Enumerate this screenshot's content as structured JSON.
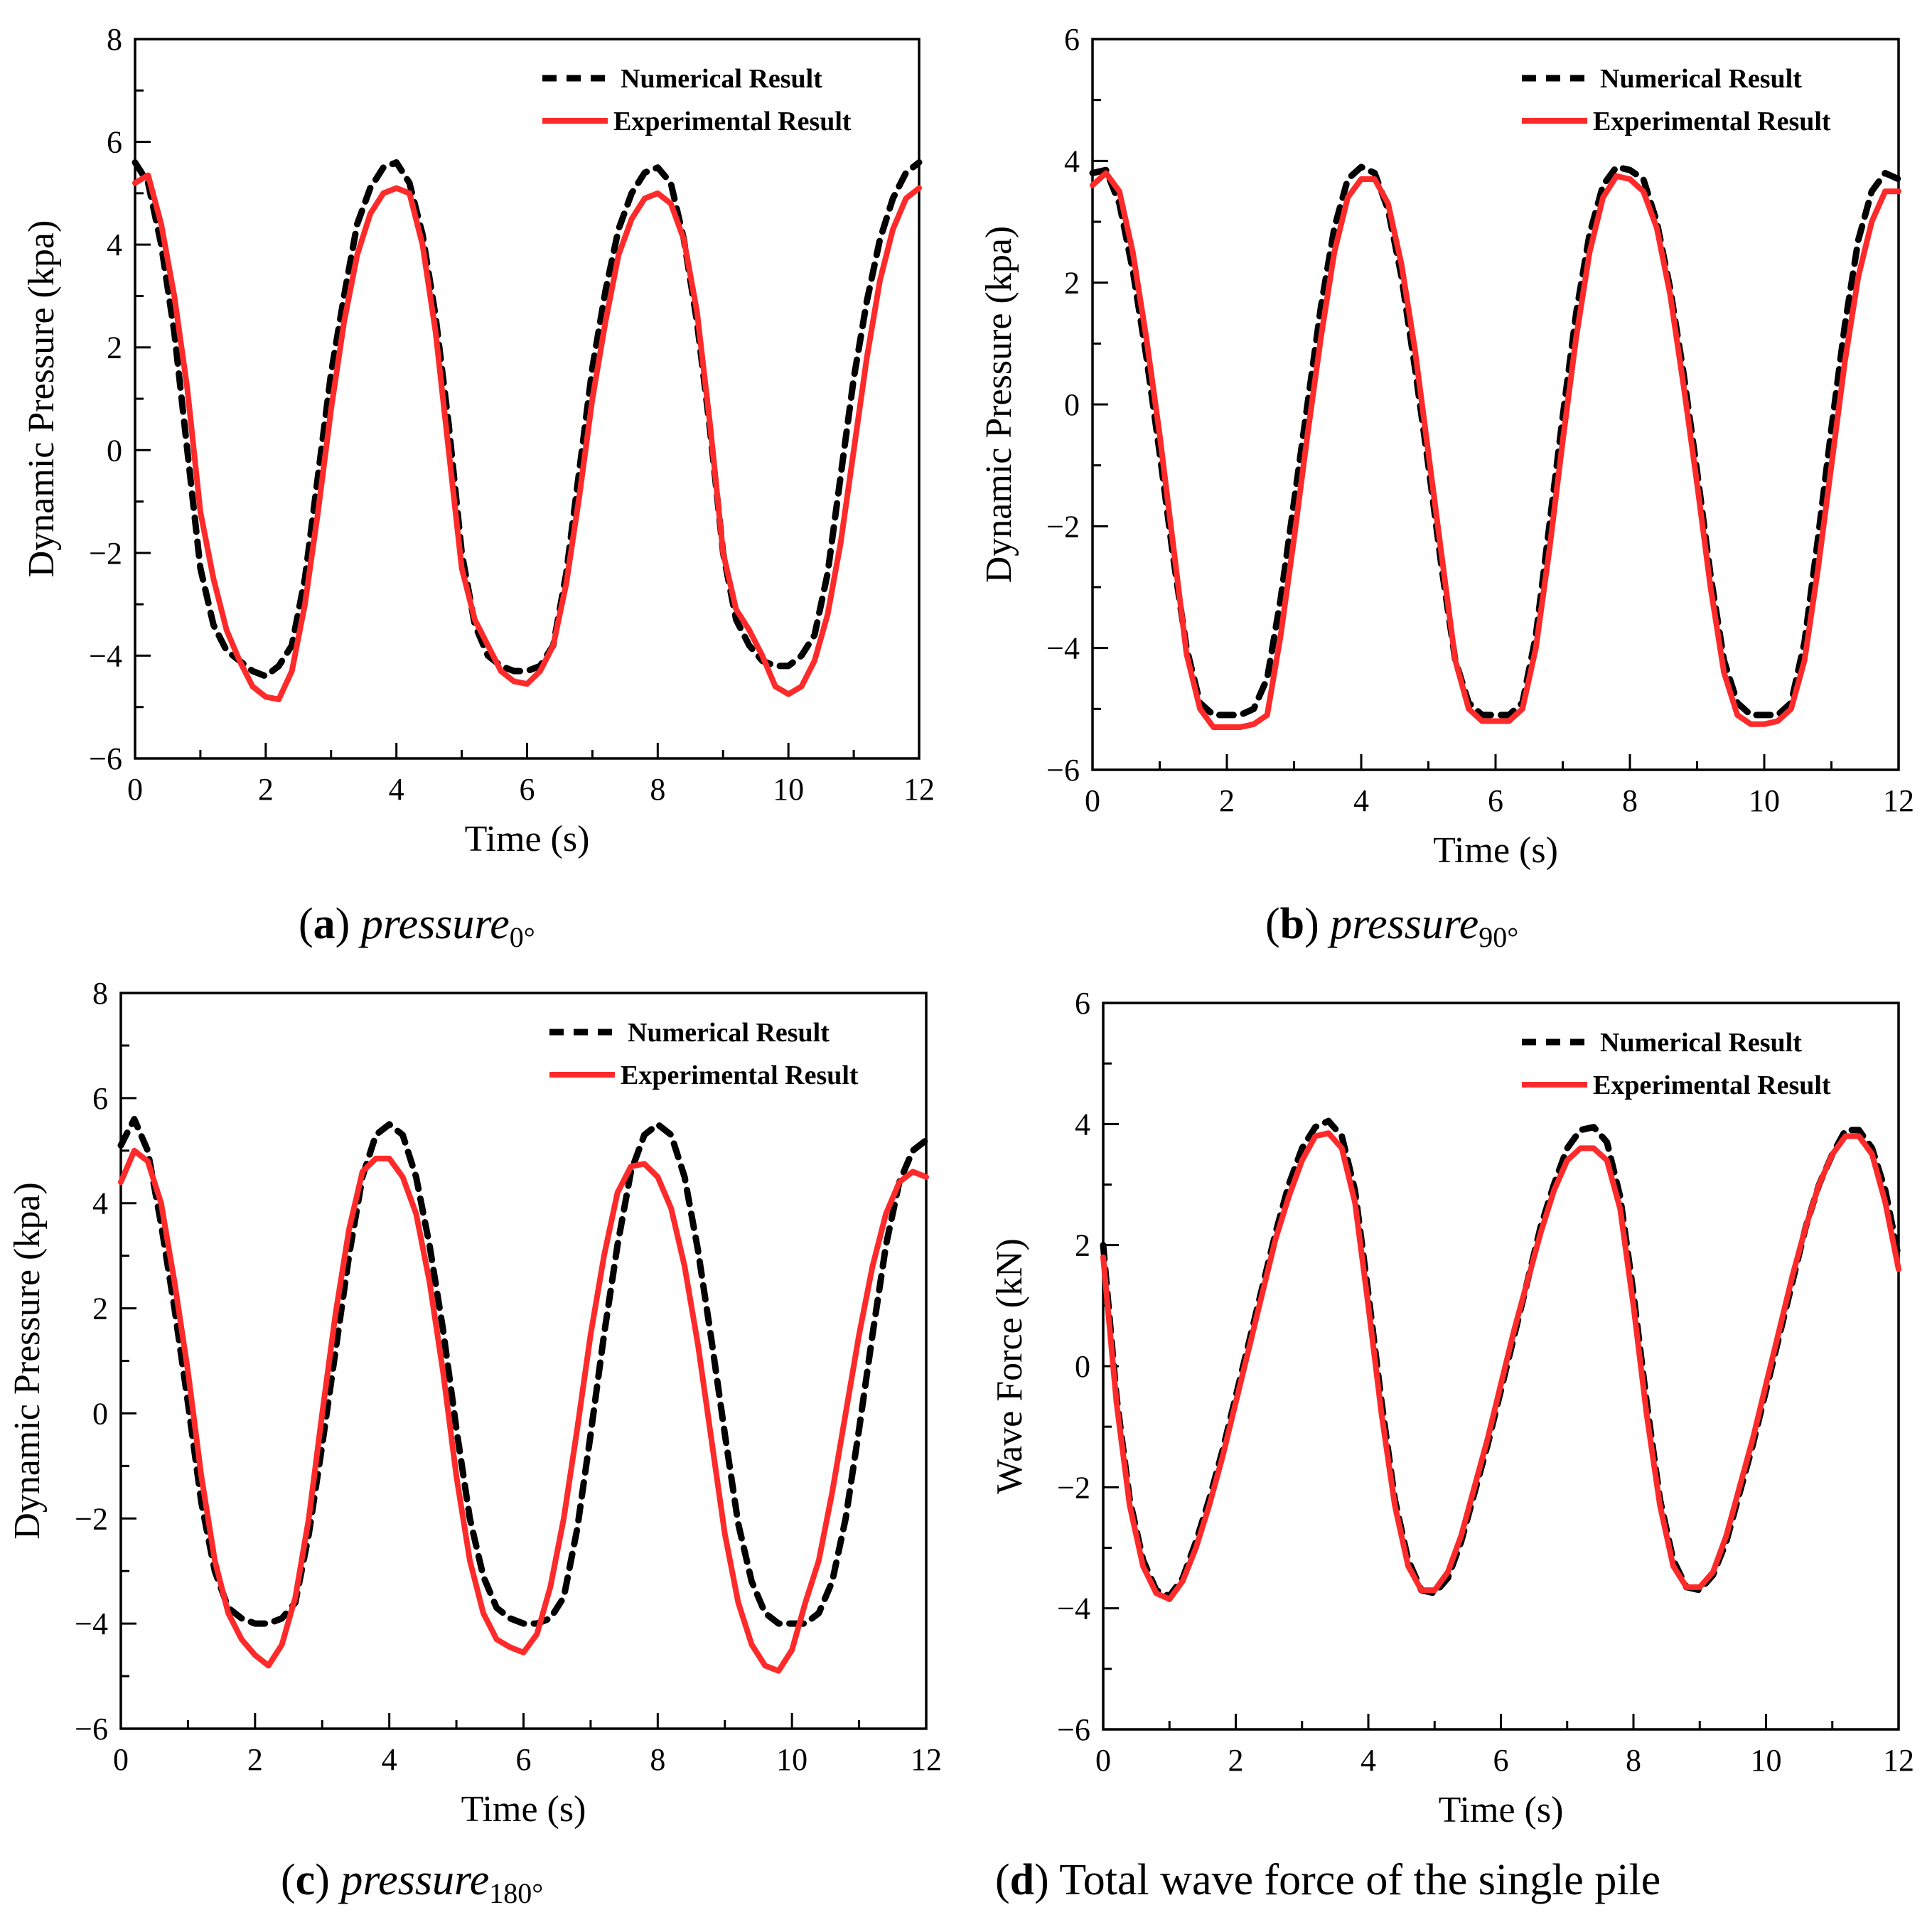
{
  "chart_data": [
    {
      "type": "line",
      "panel": "a",
      "xlabel": "Time (s)",
      "ylabel": "Dynamic Pressure (kpa)",
      "xlim": [
        0,
        12
      ],
      "ylim": [
        -6,
        8
      ],
      "xticks": [
        0,
        2,
        4,
        6,
        8,
        10,
        12
      ],
      "yticks": [
        -6,
        -4,
        -2,
        0,
        2,
        4,
        6,
        8
      ],
      "legend": {
        "position": "top-right",
        "numerical": "Numerical Result",
        "experimental": "Experimental Result"
      },
      "caption": {
        "letter": "a",
        "variable": "pressure",
        "subscript": "0°",
        "text": ""
      },
      "x": [
        0,
        0.2,
        0.4,
        0.6,
        0.8,
        1.0,
        1.2,
        1.4,
        1.6,
        1.8,
        2.0,
        2.2,
        2.4,
        2.6,
        2.8,
        3.0,
        3.2,
        3.4,
        3.6,
        3.8,
        4.0,
        4.2,
        4.4,
        4.6,
        4.8,
        5.0,
        5.2,
        5.4,
        5.6,
        5.8,
        6.0,
        6.2,
        6.4,
        6.6,
        6.8,
        7.0,
        7.2,
        7.4,
        7.6,
        7.8,
        8.0,
        8.2,
        8.4,
        8.6,
        8.8,
        9.0,
        9.2,
        9.4,
        9.6,
        9.8,
        10.0,
        10.2,
        10.4,
        10.6,
        10.8,
        11.0,
        11.2,
        11.4,
        11.6,
        11.8,
        12.0
      ],
      "series": [
        {
          "name": "Numerical Result",
          "style": "dashed",
          "color": "#000000",
          "values": [
            5.6,
            5.2,
            4.0,
            2.3,
            0.0,
            -2.3,
            -3.4,
            -3.9,
            -4.1,
            -4.3,
            -4.4,
            -4.2,
            -3.8,
            -2.5,
            -0.5,
            1.5,
            3.0,
            4.4,
            5.1,
            5.5,
            5.6,
            5.2,
            4.2,
            2.6,
            0.5,
            -2.0,
            -3.4,
            -4.0,
            -4.2,
            -4.3,
            -4.3,
            -4.2,
            -3.8,
            -2.4,
            -0.4,
            1.6,
            3.1,
            4.3,
            5.0,
            5.4,
            5.5,
            5.2,
            4.1,
            2.5,
            0.4,
            -2.0,
            -3.3,
            -3.8,
            -4.1,
            -4.2,
            -4.2,
            -4.0,
            -3.6,
            -2.4,
            -0.5,
            1.4,
            2.9,
            4.1,
            4.9,
            5.4,
            5.6
          ]
        },
        {
          "name": "Experimental Result",
          "style": "solid",
          "color": "#ff2a2a",
          "values": [
            5.2,
            5.35,
            4.4,
            3.0,
            1.2,
            -1.2,
            -2.5,
            -3.5,
            -4.1,
            -4.6,
            -4.8,
            -4.85,
            -4.3,
            -3.0,
            -1.2,
            0.8,
            2.5,
            3.8,
            4.6,
            5.0,
            5.1,
            5.0,
            4.0,
            2.3,
            0.0,
            -2.3,
            -3.3,
            -3.8,
            -4.3,
            -4.5,
            -4.55,
            -4.3,
            -3.8,
            -2.6,
            -0.9,
            1.0,
            2.5,
            3.8,
            4.5,
            4.9,
            5.0,
            4.8,
            4.1,
            2.7,
            0.5,
            -2.0,
            -3.1,
            -3.5,
            -4.0,
            -4.6,
            -4.75,
            -4.6,
            -4.1,
            -3.2,
            -1.8,
            0.0,
            1.8,
            3.3,
            4.3,
            4.9,
            5.1
          ]
        }
      ]
    },
    {
      "type": "line",
      "panel": "b",
      "xlabel": "Time (s)",
      "ylabel": "Dynamic Pressure (kpa)",
      "xlim": [
        0,
        12
      ],
      "ylim": [
        -6,
        6
      ],
      "xticks": [
        0,
        2,
        4,
        6,
        8,
        10,
        12
      ],
      "yticks": [
        -6,
        -4,
        -2,
        0,
        2,
        4,
        6
      ],
      "legend": {
        "position": "top-right",
        "numerical": "Numerical Result",
        "experimental": "Experimental Result"
      },
      "caption": {
        "letter": "b",
        "variable": "pressure",
        "subscript": "90°",
        "text": ""
      },
      "x": [
        0,
        0.2,
        0.4,
        0.6,
        0.8,
        1.0,
        1.2,
        1.4,
        1.6,
        1.8,
        2.0,
        2.2,
        2.4,
        2.6,
        2.8,
        3.0,
        3.2,
        3.4,
        3.6,
        3.8,
        4.0,
        4.2,
        4.4,
        4.6,
        4.8,
        5.0,
        5.2,
        5.4,
        5.6,
        5.8,
        6.0,
        6.2,
        6.4,
        6.6,
        6.8,
        7.0,
        7.2,
        7.4,
        7.6,
        7.8,
        8.0,
        8.2,
        8.4,
        8.6,
        8.8,
        9.0,
        9.2,
        9.4,
        9.6,
        9.8,
        10.0,
        10.2,
        10.4,
        10.6,
        10.8,
        11.0,
        11.2,
        11.4,
        11.6,
        11.8,
        12.0
      ],
      "series": [
        {
          "name": "Numerical Result",
          "style": "dashed",
          "color": "#000000",
          "values": [
            3.8,
            3.85,
            3.3,
            2.2,
            0.8,
            -0.8,
            -2.5,
            -4.0,
            -4.9,
            -5.1,
            -5.1,
            -5.1,
            -5.0,
            -4.5,
            -3.2,
            -1.6,
            0.0,
            1.6,
            2.9,
            3.7,
            3.9,
            3.8,
            3.2,
            2.1,
            0.6,
            -1.0,
            -2.7,
            -4.2,
            -4.9,
            -5.1,
            -5.1,
            -5.1,
            -4.9,
            -3.8,
            -2.0,
            -0.2,
            1.5,
            2.8,
            3.6,
            3.9,
            3.85,
            3.7,
            3.0,
            1.9,
            0.5,
            -1.1,
            -2.8,
            -4.2,
            -4.9,
            -5.1,
            -5.1,
            -5.1,
            -4.9,
            -3.9,
            -2.2,
            -0.4,
            1.3,
            2.7,
            3.5,
            3.8,
            3.7
          ]
        },
        {
          "name": "Experimental Result",
          "style": "solid",
          "color": "#ff2a2a",
          "values": [
            3.6,
            3.8,
            3.5,
            2.5,
            1.1,
            -0.5,
            -2.3,
            -4.1,
            -5.0,
            -5.3,
            -5.3,
            -5.3,
            -5.25,
            -5.1,
            -3.8,
            -2.2,
            -0.5,
            1.1,
            2.5,
            3.4,
            3.7,
            3.7,
            3.3,
            2.3,
            0.9,
            -0.8,
            -2.5,
            -4.2,
            -5.0,
            -5.2,
            -5.2,
            -5.2,
            -5.0,
            -4.0,
            -2.4,
            -0.6,
            1.1,
            2.5,
            3.4,
            3.75,
            3.7,
            3.5,
            2.9,
            1.8,
            0.3,
            -1.3,
            -3.0,
            -4.4,
            -5.1,
            -5.25,
            -5.25,
            -5.2,
            -5.0,
            -4.2,
            -2.7,
            -1.0,
            0.7,
            2.1,
            3.0,
            3.5,
            3.5
          ]
        }
      ]
    },
    {
      "type": "line",
      "panel": "c",
      "xlabel": "Time (s)",
      "ylabel": "Dynamic Pressure (kpa)",
      "xlim": [
        0,
        12
      ],
      "ylim": [
        -6,
        8
      ],
      "xticks": [
        0,
        2,
        4,
        6,
        8,
        10,
        12
      ],
      "yticks": [
        -6,
        -4,
        -2,
        0,
        2,
        4,
        6,
        8
      ],
      "legend": {
        "position": "top-right",
        "numerical": "Numerical Result",
        "experimental": "Experimental Result"
      },
      "caption": {
        "letter": "c",
        "variable": "pressure",
        "subscript": "180°",
        "text": ""
      },
      "x": [
        0,
        0.2,
        0.4,
        0.6,
        0.8,
        1.0,
        1.2,
        1.4,
        1.6,
        1.8,
        2.0,
        2.2,
        2.4,
        2.6,
        2.8,
        3.0,
        3.2,
        3.4,
        3.6,
        3.8,
        4.0,
        4.2,
        4.4,
        4.6,
        4.8,
        5.0,
        5.2,
        5.4,
        5.6,
        5.8,
        6.0,
        6.2,
        6.4,
        6.6,
        6.8,
        7.0,
        7.2,
        7.4,
        7.6,
        7.8,
        8.0,
        8.2,
        8.4,
        8.6,
        8.8,
        9.0,
        9.2,
        9.4,
        9.6,
        9.8,
        10.0,
        10.2,
        10.4,
        10.6,
        10.8,
        11.0,
        11.2,
        11.4,
        11.6,
        11.8,
        12.0
      ],
      "series": [
        {
          "name": "Numerical Result",
          "style": "dashed",
          "color": "#000000",
          "values": [
            5.1,
            5.6,
            5.0,
            3.6,
            2.0,
            0.2,
            -1.7,
            -3.0,
            -3.7,
            -3.9,
            -4.0,
            -4.0,
            -3.9,
            -3.6,
            -2.3,
            -0.6,
            1.2,
            3.0,
            4.5,
            5.3,
            5.5,
            5.3,
            4.5,
            3.2,
            1.6,
            -0.3,
            -2.0,
            -3.1,
            -3.7,
            -3.9,
            -4.0,
            -4.0,
            -3.9,
            -3.5,
            -2.2,
            -0.4,
            1.5,
            3.2,
            4.6,
            5.3,
            5.5,
            5.3,
            4.5,
            3.1,
            1.4,
            -0.4,
            -2.1,
            -3.2,
            -3.8,
            -4.0,
            -4.0,
            -4.0,
            -3.8,
            -3.2,
            -2.0,
            -0.3,
            1.5,
            3.2,
            4.4,
            5.0,
            5.2
          ]
        },
        {
          "name": "Experimental Result",
          "style": "solid",
          "color": "#ff2a2a",
          "values": [
            4.4,
            5.0,
            4.8,
            4.0,
            2.5,
            0.8,
            -1.2,
            -2.8,
            -3.8,
            -4.3,
            -4.6,
            -4.8,
            -4.4,
            -3.5,
            -2.0,
            0.0,
            1.9,
            3.5,
            4.6,
            4.85,
            4.85,
            4.5,
            3.8,
            2.5,
            0.8,
            -1.2,
            -2.8,
            -3.8,
            -4.3,
            -4.45,
            -4.55,
            -4.2,
            -3.3,
            -2.0,
            -0.3,
            1.5,
            3.0,
            4.2,
            4.7,
            4.75,
            4.5,
            3.9,
            2.8,
            1.3,
            -0.5,
            -2.3,
            -3.6,
            -4.4,
            -4.8,
            -4.9,
            -4.5,
            -3.6,
            -2.8,
            -1.5,
            0.0,
            1.5,
            2.8,
            3.8,
            4.4,
            4.6,
            4.5
          ]
        }
      ]
    },
    {
      "type": "line",
      "panel": "d",
      "xlabel": "Time (s)",
      "ylabel": "Wave Force (kN)",
      "xlim": [
        0,
        12
      ],
      "ylim": [
        -6,
        6
      ],
      "xticks": [
        0,
        2,
        4,
        6,
        8,
        10,
        12
      ],
      "yticks": [
        -6,
        -4,
        -2,
        0,
        2,
        4,
        6
      ],
      "legend": {
        "position": "top-right",
        "numerical": "Numerical Result",
        "experimental": "Experimental Result"
      },
      "caption": {
        "letter": "d",
        "variable": "",
        "subscript": "",
        "text": "Total wave force of the single pile"
      },
      "x": [
        0,
        0.2,
        0.4,
        0.6,
        0.8,
        1.0,
        1.2,
        1.4,
        1.6,
        1.8,
        2.0,
        2.2,
        2.4,
        2.6,
        2.8,
        3.0,
        3.2,
        3.4,
        3.6,
        3.8,
        4.0,
        4.2,
        4.4,
        4.6,
        4.8,
        5.0,
        5.2,
        5.4,
        5.6,
        5.8,
        6.0,
        6.2,
        6.4,
        6.6,
        6.8,
        7.0,
        7.2,
        7.4,
        7.6,
        7.8,
        8.0,
        8.2,
        8.4,
        8.6,
        8.8,
        9.0,
        9.2,
        9.4,
        9.6,
        9.8,
        10.0,
        10.2,
        10.4,
        10.6,
        10.8,
        11.0,
        11.2,
        11.4,
        11.6,
        11.8,
        12.0
      ],
      "series": [
        {
          "name": "Numerical Result",
          "style": "dashed",
          "color": "#000000",
          "values": [
            2.0,
            -0.5,
            -2.2,
            -3.2,
            -3.7,
            -3.8,
            -3.5,
            -2.9,
            -2.2,
            -1.4,
            -0.5,
            0.4,
            1.3,
            2.2,
            3.0,
            3.6,
            3.95,
            4.05,
            3.8,
            2.9,
            1.2,
            -0.6,
            -2.2,
            -3.2,
            -3.7,
            -3.75,
            -3.5,
            -2.9,
            -2.1,
            -1.3,
            -0.4,
            0.5,
            1.4,
            2.3,
            3.0,
            3.6,
            3.9,
            3.95,
            3.7,
            2.8,
            1.2,
            -0.6,
            -2.2,
            -3.2,
            -3.65,
            -3.7,
            -3.45,
            -2.9,
            -2.1,
            -1.3,
            -0.4,
            0.5,
            1.4,
            2.3,
            3.0,
            3.5,
            3.9,
            3.9,
            3.6,
            2.9,
            1.8
          ]
        },
        {
          "name": "Experimental Result",
          "style": "solid",
          "color": "#ff2a2a",
          "values": [
            1.8,
            -0.6,
            -2.3,
            -3.3,
            -3.75,
            -3.85,
            -3.55,
            -3.0,
            -2.3,
            -1.5,
            -0.6,
            0.3,
            1.2,
            2.1,
            2.8,
            3.4,
            3.8,
            3.85,
            3.6,
            2.7,
            1.0,
            -0.8,
            -2.3,
            -3.3,
            -3.7,
            -3.7,
            -3.4,
            -2.8,
            -2.0,
            -1.2,
            -0.3,
            0.6,
            1.4,
            2.2,
            2.9,
            3.4,
            3.6,
            3.6,
            3.4,
            2.6,
            1.0,
            -0.8,
            -2.3,
            -3.3,
            -3.65,
            -3.65,
            -3.4,
            -2.8,
            -2.0,
            -1.2,
            -0.3,
            0.6,
            1.5,
            2.3,
            3.0,
            3.5,
            3.8,
            3.8,
            3.5,
            2.7,
            1.6
          ]
        }
      ]
    }
  ]
}
